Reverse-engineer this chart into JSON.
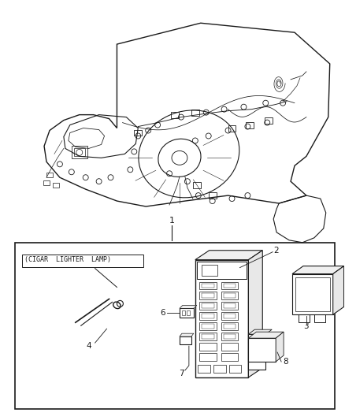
{
  "bg_color": "#ffffff",
  "line_color": "#1a1a1a",
  "fig_width": 4.38,
  "fig_height": 5.33,
  "dpi": 100,
  "label1": "1",
  "label2": "2",
  "label3": "3",
  "label4": "4",
  "label6": "6",
  "label7": "7",
  "label8": "8",
  "cigar_label": "(CIGAR  LIGHTER  LAMP)"
}
